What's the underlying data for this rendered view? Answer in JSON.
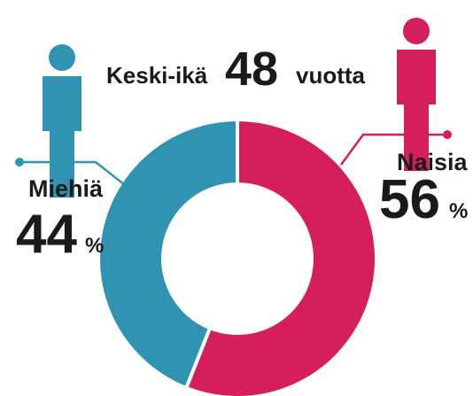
{
  "chart_data": {
    "type": "donut",
    "annotation": {
      "prefix": "Keski-ikä",
      "value": 48,
      "suffix": "vuotta"
    },
    "categories": [
      "Naisia",
      "Miehiä"
    ],
    "values": [
      56,
      44
    ],
    "unit": "%",
    "colors": [
      "#d41f5b",
      "#2f93b1"
    ]
  }
}
